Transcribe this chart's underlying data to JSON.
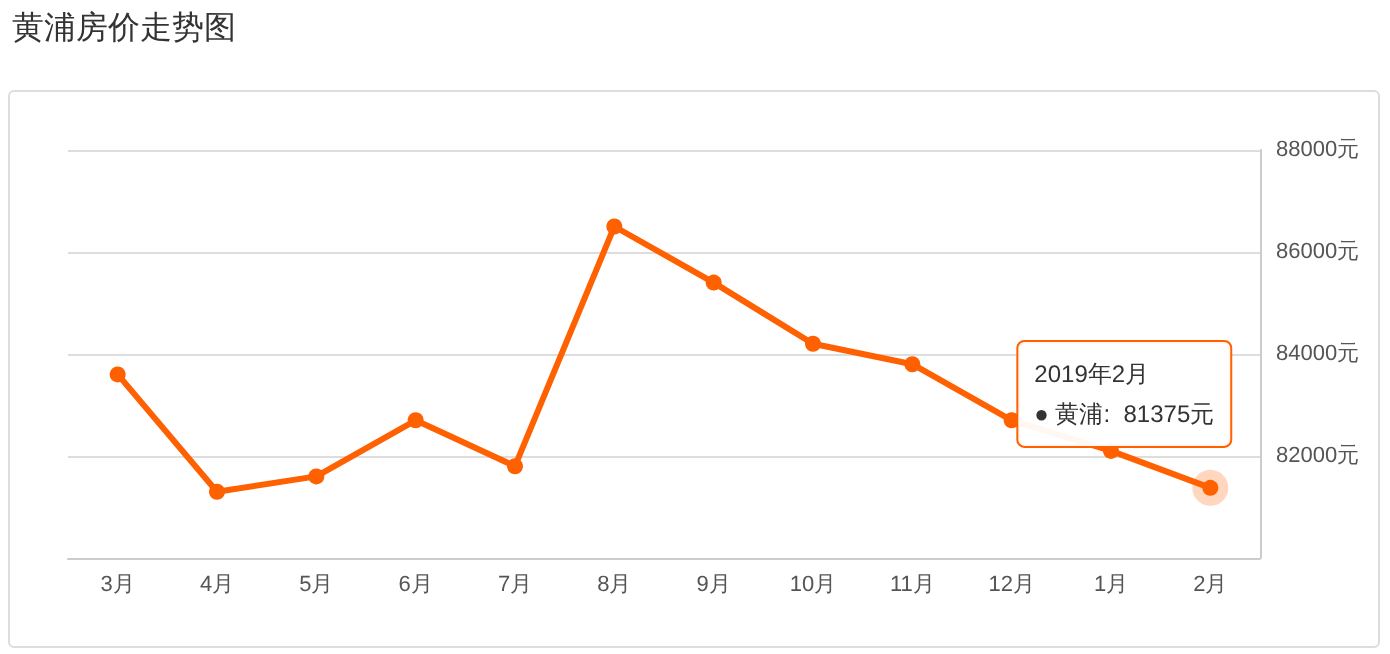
{
  "chart_data": {
    "type": "line",
    "title": "黄浦房价走势图",
    "categories": [
      "3月",
      "4月",
      "5月",
      "6月",
      "7月",
      "8月",
      "9月",
      "10月",
      "11月",
      "12月",
      "1月",
      "2月"
    ],
    "series": [
      {
        "color": "#ff6000",
        "values": [
          83600,
          81300,
          81600,
          82700,
          81800,
          86500,
          85400,
          84200,
          83800,
          82700,
          82100,
          81375
        ]
      }
    ],
    "ylim": [
      80000,
      88000
    ],
    "yticks": [
      {
        "value": 82000,
        "label": "82000元"
      },
      {
        "value": 84000,
        "label": "84000元"
      },
      {
        "value": 86000,
        "label": "86000元"
      },
      {
        "value": 88000,
        "label": "88000元"
      }
    ],
    "grid": "y",
    "marker": "circle",
    "line_style": "solid",
    "annotations": [
      {
        "text": "2019年2月\n● 黄浦:  81375元",
        "x": "2月",
        "y": 81375
      }
    ]
  }
}
